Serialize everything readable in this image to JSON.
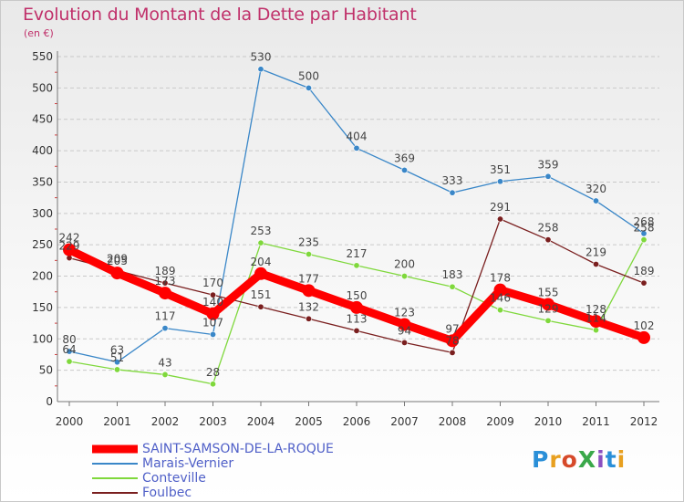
{
  "title": "Evolution du Montant de la Dette par Habitant",
  "unit_label": "(en €)",
  "logo_text": "ProXiti",
  "chart_data": {
    "type": "line",
    "title": "Evolution du Montant de la Dette par Habitant",
    "subtitle": "(en €)",
    "xlabel": "",
    "ylabel": "",
    "x": [
      "2000",
      "2001",
      "2002",
      "2003",
      "2004",
      "2005",
      "2006",
      "2007",
      "2008",
      "2009",
      "2010",
      "2011",
      "2012"
    ],
    "ylim": [
      0,
      550
    ],
    "yticks": [
      0,
      50,
      100,
      150,
      200,
      250,
      300,
      350,
      400,
      450,
      500,
      550
    ],
    "grid": "horizontal dashed",
    "legend_position": "bottom-left",
    "series": [
      {
        "name": "SAINT-SAMSON-DE-LA-ROQUE",
        "color": "#ff0000",
        "values": [
          242,
          205,
          173,
          140,
          204,
          177,
          150,
          123,
          97,
          178,
          155,
          128,
          102
        ]
      },
      {
        "name": "Marais-Vernier",
        "color": "#3a87c8",
        "values": [
          80,
          63,
          117,
          107,
          530,
          500,
          404,
          369,
          333,
          351,
          359,
          320,
          268
        ]
      },
      {
        "name": "Conteville",
        "color": "#7fd83c",
        "values": [
          64,
          51,
          43,
          28,
          253,
          235,
          217,
          200,
          183,
          146,
          129,
          114,
          258
        ]
      },
      {
        "name": "Foulbec",
        "color": "#7a1f1f",
        "values": [
          229,
          209,
          189,
          170,
          151,
          132,
          113,
          94,
          78,
          291,
          258,
          219,
          189
        ]
      }
    ]
  }
}
